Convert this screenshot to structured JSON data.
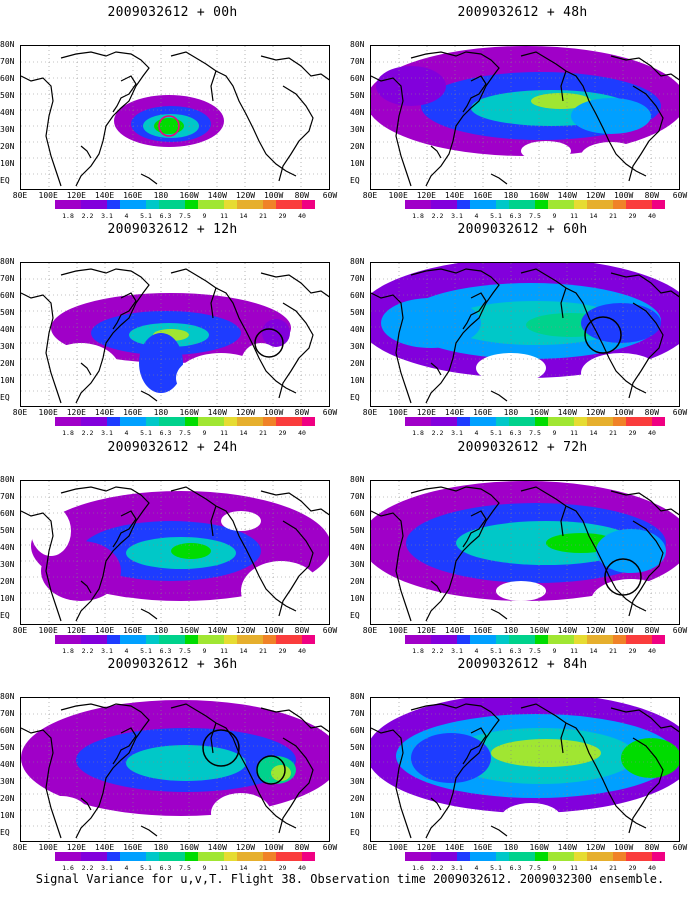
{
  "panels": [
    {
      "title": "2009032612 + 00h"
    },
    {
      "title": "2009032612 + 48h"
    },
    {
      "title": "2009032612 + 12h"
    },
    {
      "title": "2009032612 + 60h"
    },
    {
      "title": "2009032612 + 24h"
    },
    {
      "title": "2009032612 + 72h"
    },
    {
      "title": "2009032612 + 36h"
    },
    {
      "title": "2009032612 + 84h"
    }
  ],
  "lat_labels": [
    "80N",
    "70N",
    "60N",
    "50N",
    "40N",
    "30N",
    "20N",
    "10N",
    "EQ"
  ],
  "lon_labels": [
    "80E",
    "100E",
    "120E",
    "140E",
    "160E",
    "180",
    "160W",
    "140W",
    "120W",
    "100W",
    "80W",
    "60W"
  ],
  "colorbar": {
    "labels": [
      "1.8",
      "2.2",
      "3.1",
      "4",
      "5.1",
      "6.3",
      "7.5",
      "9",
      "11",
      "14",
      "21",
      "29",
      "40"
    ],
    "labels_last_row": [
      "1.6",
      "2.2",
      "3.1",
      "4",
      "5.1",
      "6.3",
      "7.5",
      "9",
      "11",
      "14",
      "21",
      "29",
      "40"
    ],
    "colors": [
      "#a000c8",
      "#8200dc",
      "#1e3cff",
      "#00a0ff",
      "#00c8c8",
      "#00d28c",
      "#00dc00",
      "#a0e632",
      "#e6dc32",
      "#e6af2d",
      "#f08228",
      "#fa3c3c",
      "#f00082"
    ]
  },
  "footer": "Signal Variance for u,v,T. Flight 38. Observation time 2009032612. 2009032300 ensemble."
}
